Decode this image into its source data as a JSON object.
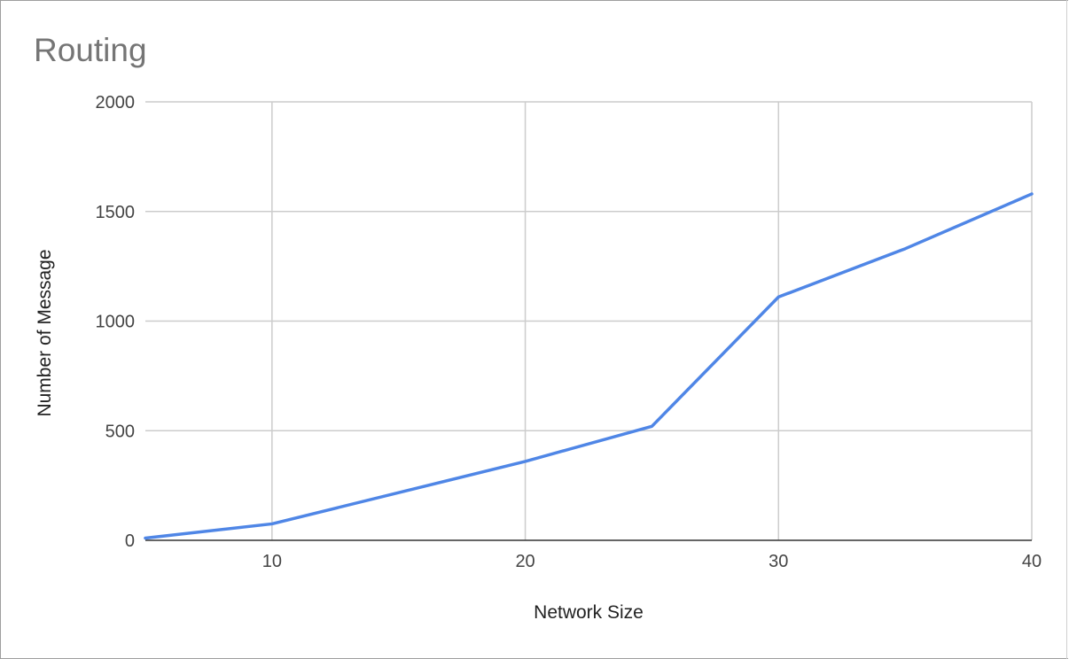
{
  "chart_data": {
    "type": "line",
    "title": "Routing",
    "xlabel": "Network Size",
    "ylabel": "Number of Message",
    "xlim": [
      5,
      40
    ],
    "ylim": [
      0,
      2000
    ],
    "x_ticks": [
      10,
      20,
      30,
      40
    ],
    "y_ticks": [
      0,
      500,
      1000,
      1500,
      2000
    ],
    "grid": true,
    "legend": "none",
    "series": [
      {
        "color": "#4f86e6",
        "x": [
          5,
          10,
          20,
          25,
          30,
          35,
          40
        ],
        "y": [
          10,
          75,
          360,
          520,
          1110,
          1330,
          1580
        ]
      }
    ]
  }
}
